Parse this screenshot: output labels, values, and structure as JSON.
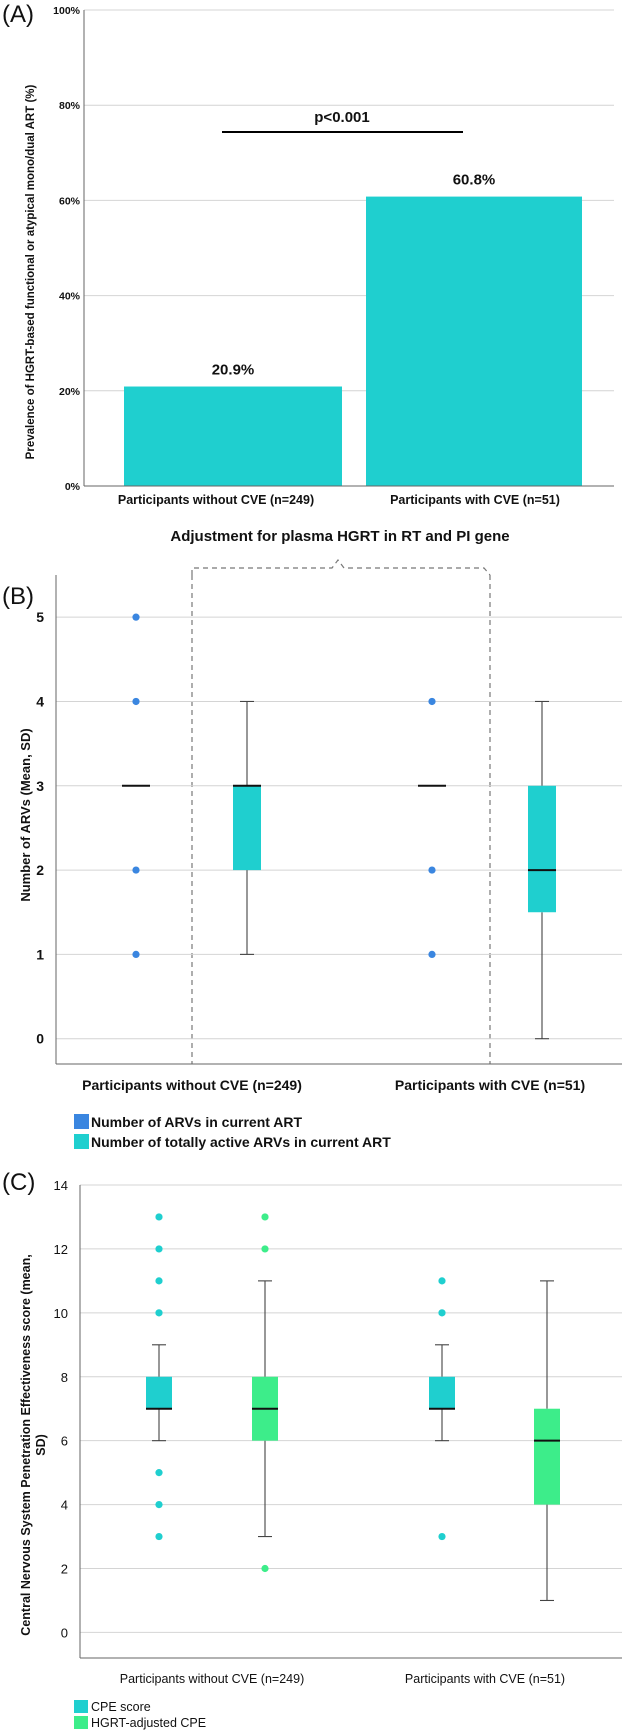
{
  "chart_data": [
    {
      "type": "bar",
      "panel_label": "(A)",
      "categories": [
        "Participants without CVE (n=249)",
        "Participants with CVE (n=51)"
      ],
      "values": [
        20.9,
        60.8
      ],
      "value_labels": [
        "20.9%",
        "60.8%"
      ],
      "ylabel": "Prevalence of HGRT-based functional or atypical mono/dual ART (%)",
      "yticks": [
        "0%",
        "20%",
        "40%",
        "60%",
        "80%",
        "100%"
      ],
      "ylim": [
        0,
        100
      ],
      "grid": true,
      "annotation": "p<0.001",
      "color": "#1fcfcf"
    },
    {
      "type": "box",
      "panel_label": "(B)",
      "annotation": "Adjustment for plasma HGRT in RT and PI gene",
      "categories": [
        "Participants without CVE (n=249)",
        "Participants with CVE (n=51)"
      ],
      "ylabel": "Number of ARVs (Mean, SD)",
      "yticks": [
        "0",
        "1",
        "2",
        "3",
        "4",
        "5"
      ],
      "ylim": [
        -0.3,
        5.5
      ],
      "grid": true,
      "legend_position": "bottom-left",
      "series": [
        {
          "name": "Number of ARVs in current ART",
          "color": "#3a86e0",
          "boxes": [
            {
              "q1": 3,
              "median": 3,
              "q3": 3,
              "whisker_low": 3,
              "whisker_high": 3,
              "outliers": [
                1,
                2,
                4,
                5
              ]
            },
            {
              "q1": 3,
              "median": 3,
              "q3": 3,
              "whisker_low": 3,
              "whisker_high": 3,
              "outliers": [
                1,
                2,
                4
              ]
            }
          ]
        },
        {
          "name": "Number of totally active ARVs in current ART",
          "color": "#1fcfcf",
          "boxes": [
            {
              "q1": 2,
              "median": 3,
              "q3": 3,
              "whisker_low": 1,
              "whisker_high": 4,
              "outliers": []
            },
            {
              "q1": 1.5,
              "median": 2,
              "q3": 3,
              "whisker_low": 0,
              "whisker_high": 4,
              "outliers": []
            }
          ]
        }
      ]
    },
    {
      "type": "box",
      "panel_label": "(C)",
      "categories": [
        "Participants without CVE (n=249)",
        "Participants with CVE (n=51)"
      ],
      "ylabel": "Central Nervous System Penetration Effectiveness score (mean, SD)",
      "yticks": [
        "0",
        "2",
        "4",
        "6",
        "8",
        "10",
        "12",
        "14"
      ],
      "ylim": [
        -0.8,
        14
      ],
      "grid": true,
      "legend_position": "bottom-left",
      "series": [
        {
          "name": "CPE score",
          "color": "#1fcfcf",
          "boxes": [
            {
              "q1": 7,
              "median": 7,
              "q3": 8,
              "whisker_low": 6,
              "whisker_high": 9,
              "outliers": [
                3,
                4,
                5,
                10,
                11,
                12,
                13
              ]
            },
            {
              "q1": 7,
              "median": 7,
              "q3": 8,
              "whisker_low": 6,
              "whisker_high": 9,
              "outliers": [
                3,
                10,
                11
              ]
            }
          ]
        },
        {
          "name": "HGRT-adjusted CPE",
          "color": "#3ded8a",
          "boxes": [
            {
              "q1": 6,
              "median": 7,
              "q3": 8,
              "whisker_low": 3,
              "whisker_high": 11,
              "outliers": [
                2,
                12,
                13
              ]
            },
            {
              "q1": 4,
              "median": 6,
              "q3": 7,
              "whisker_low": 1,
              "whisker_high": 11,
              "outliers": []
            }
          ]
        }
      ]
    }
  ]
}
